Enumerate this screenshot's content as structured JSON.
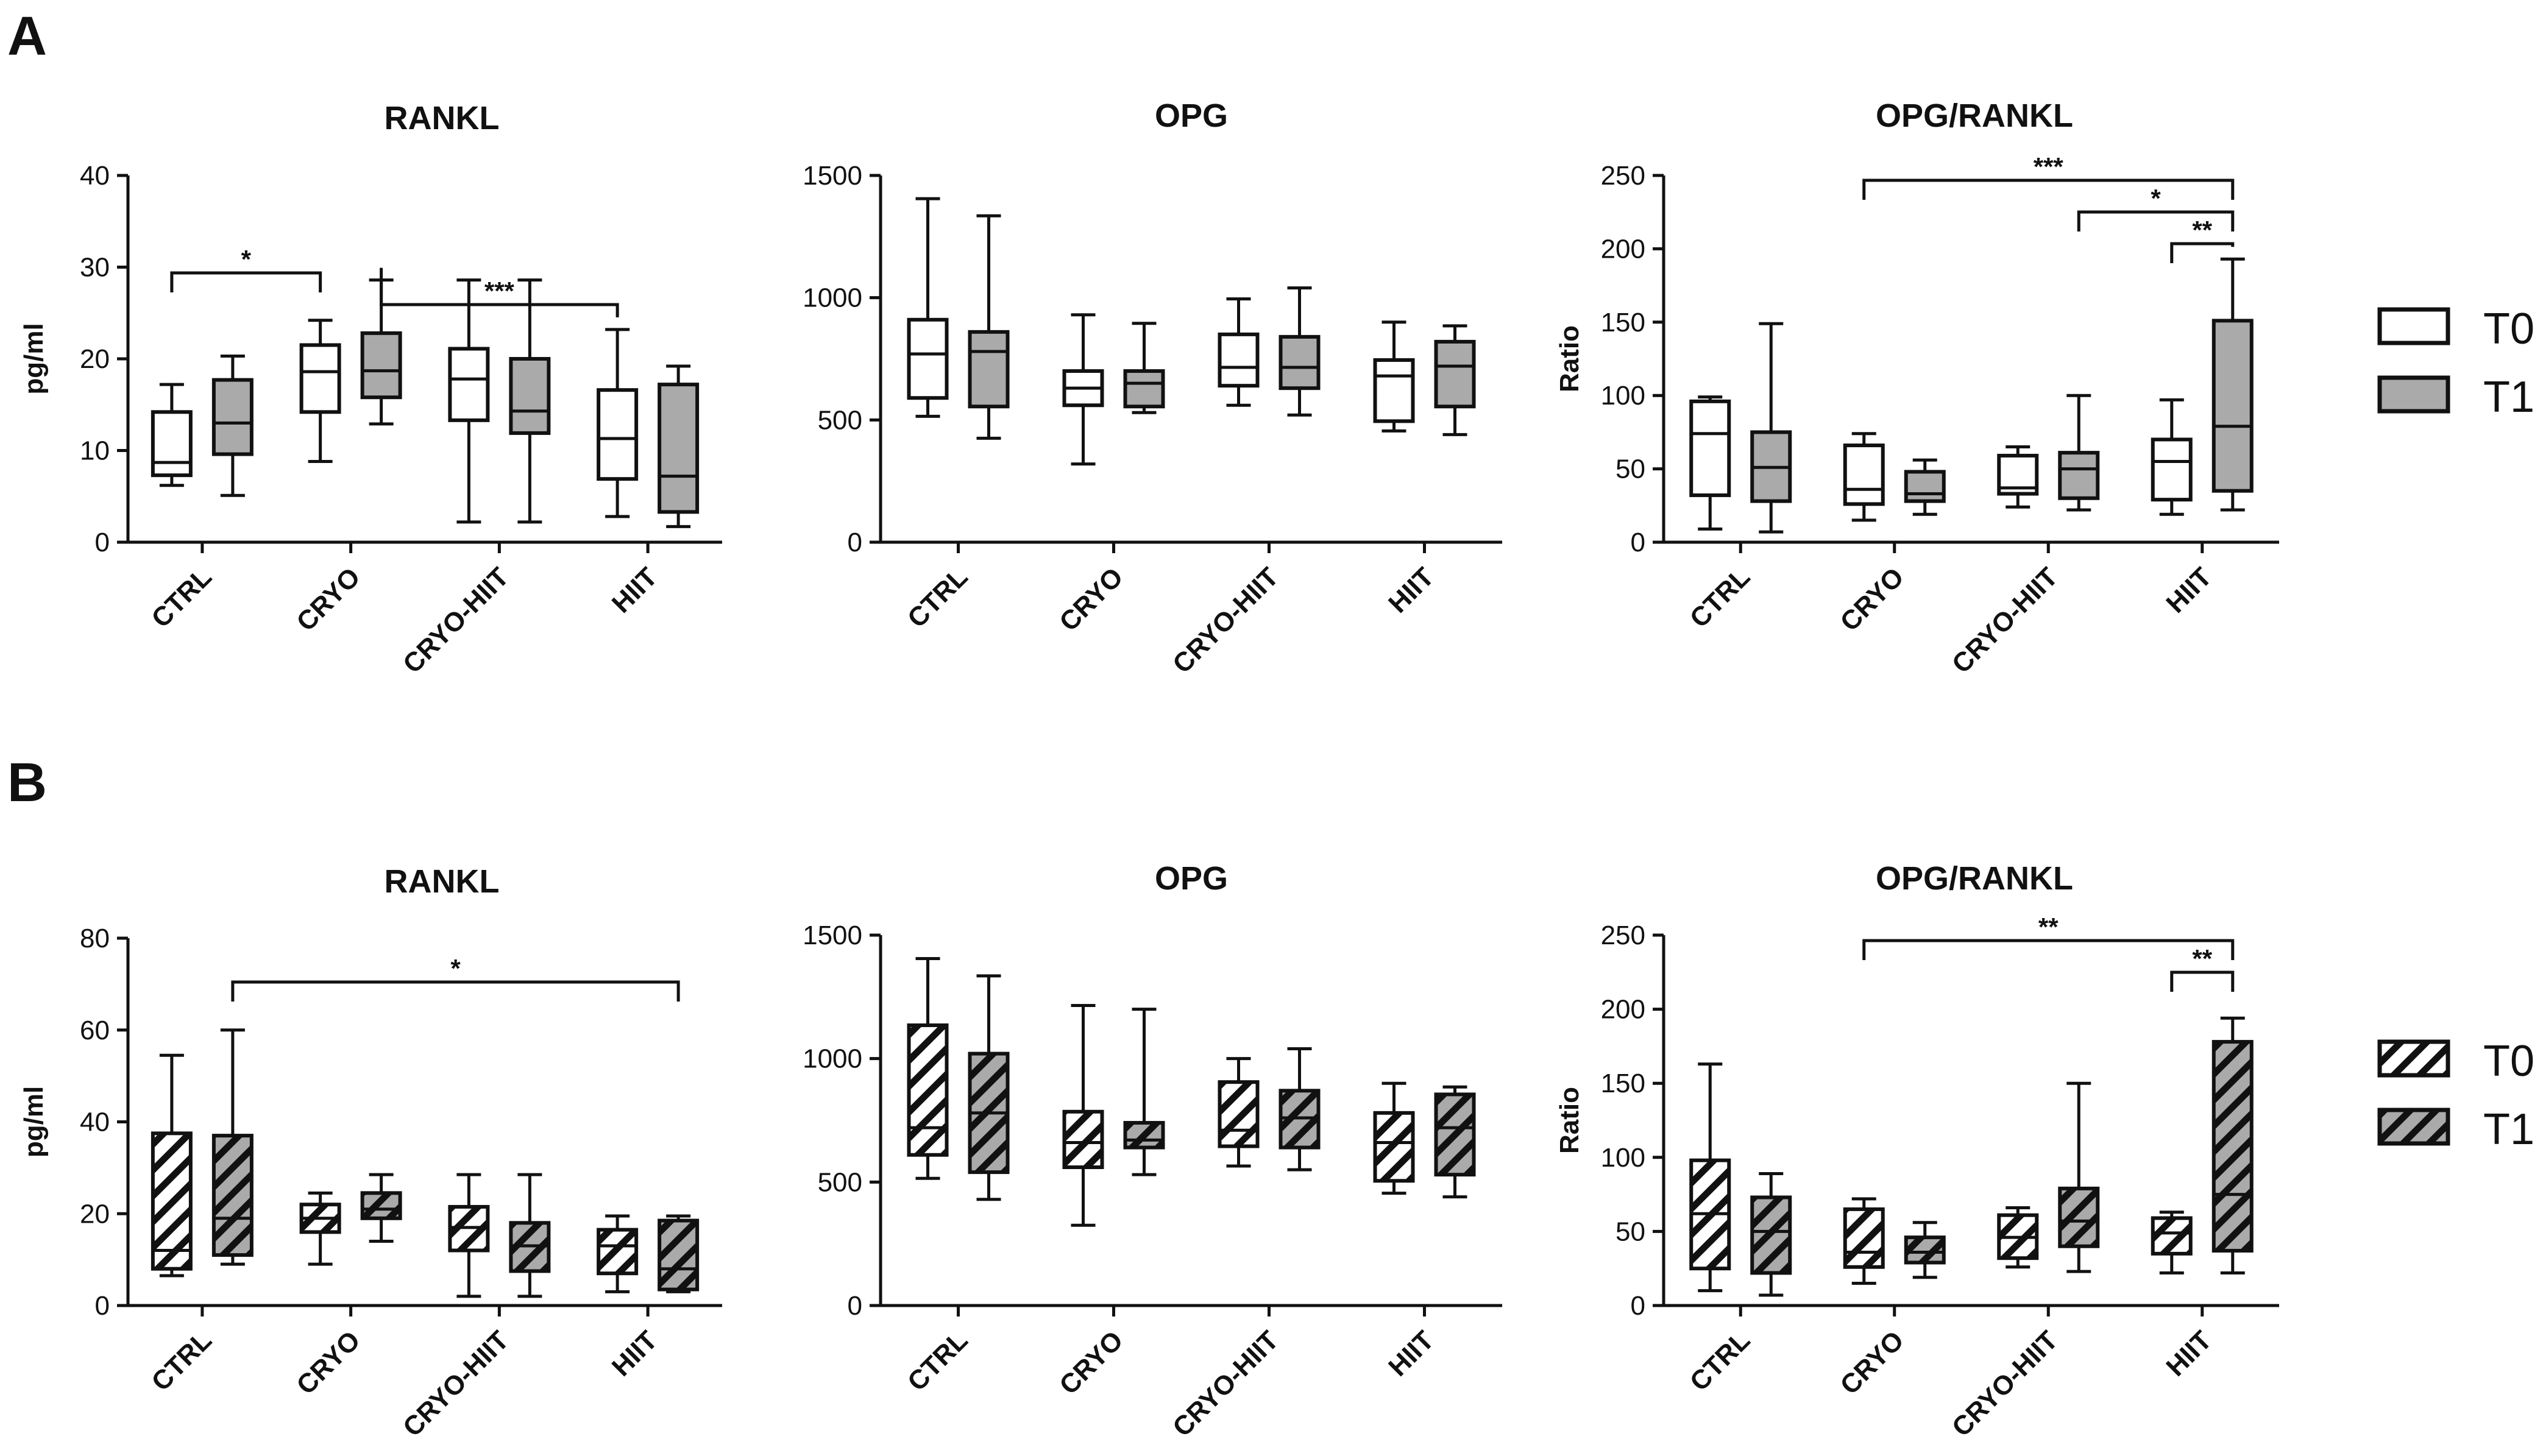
{
  "panels": [
    {
      "letter": "A"
    },
    {
      "letter": "B"
    }
  ],
  "legend_A": {
    "entries": [
      {
        "label": "T0",
        "fill": "#ffffff"
      },
      {
        "label": "T1",
        "fill": "#aaaaaa"
      }
    ],
    "hatched": false
  },
  "legend_B": {
    "entries": [
      {
        "label": "T0",
        "fill": "#ffffff"
      },
      {
        "label": "T1",
        "fill": "#aaaaaa"
      }
    ],
    "hatched": true
  },
  "colors": {
    "t0": "#ffffff",
    "t1": "#aaaaaa",
    "stroke": "#111111"
  },
  "chart_data": [
    {
      "id": "A-rankl",
      "panel": "A",
      "type": "box",
      "title": "RANKL",
      "ylabel": "pg/ml",
      "ylim": [
        0,
        40
      ],
      "yticks": [
        0,
        10,
        20,
        30,
        40
      ],
      "hatched": false,
      "categories": [
        "CTRL",
        "CRYO",
        "CRYO-HIIT",
        "HIIT"
      ],
      "series": [
        {
          "name": "T0",
          "boxes": [
            {
              "min": 6.2,
              "q1": 7.3,
              "median": 8.7,
              "q3": 14.2,
              "max": 17.2
            },
            {
              "min": 8.8,
              "q1": 14.2,
              "median": 18.6,
              "q3": 21.5,
              "max": 24.2
            },
            {
              "min": 2.2,
              "q1": 13.3,
              "median": 17.8,
              "q3": 21.1,
              "max": 28.6
            },
            {
              "min": 2.8,
              "q1": 6.9,
              "median": 11.3,
              "q3": 16.6,
              "max": 23.2
            }
          ]
        },
        {
          "name": "T1",
          "boxes": [
            {
              "min": 5.1,
              "q1": 9.6,
              "median": 13.0,
              "q3": 17.7,
              "max": 20.3
            },
            {
              "min": 12.9,
              "q1": 15.8,
              "median": 18.7,
              "q3": 22.8,
              "max": 28.6
            },
            {
              "min": 2.2,
              "q1": 11.9,
              "median": 14.3,
              "q3": 20.0,
              "max": 28.6
            },
            {
              "min": 1.7,
              "q1": 3.3,
              "median": 7.2,
              "q3": 17.2,
              "max": 19.2
            }
          ]
        }
      ],
      "significance": [
        {
          "from": [
            0,
            0
          ],
          "to": [
            1,
            0
          ],
          "label": "*"
        },
        {
          "from": [
            1,
            1
          ],
          "to": [
            3,
            0
          ],
          "label": "***"
        }
      ]
    },
    {
      "id": "A-opg",
      "panel": "A",
      "type": "box",
      "title": "OPG",
      "ylabel": "",
      "ylim": [
        0,
        1500
      ],
      "yticks": [
        0,
        500,
        1000,
        1500
      ],
      "hatched": false,
      "categories": [
        "CTRL",
        "CRYO",
        "CRYO-HIIT",
        "HIIT"
      ],
      "series": [
        {
          "name": "T0",
          "boxes": [
            {
              "min": 515,
              "q1": 590,
              "median": 770,
              "q3": 910,
              "max": 1405
            },
            {
              "min": 320,
              "q1": 560,
              "median": 630,
              "q3": 700,
              "max": 930
            },
            {
              "min": 560,
              "q1": 640,
              "median": 715,
              "q3": 850,
              "max": 995
            },
            {
              "min": 455,
              "q1": 495,
              "median": 680,
              "q3": 745,
              "max": 900
            }
          ]
        },
        {
          "name": "T1",
          "boxes": [
            {
              "min": 425,
              "q1": 555,
              "median": 780,
              "q3": 860,
              "max": 1335
            },
            {
              "min": 530,
              "q1": 555,
              "median": 650,
              "q3": 700,
              "max": 895
            },
            {
              "min": 520,
              "q1": 630,
              "median": 715,
              "q3": 840,
              "max": 1040
            },
            {
              "min": 440,
              "q1": 555,
              "median": 720,
              "q3": 820,
              "max": 885
            }
          ]
        }
      ],
      "significance": []
    },
    {
      "id": "A-ratio",
      "panel": "A",
      "type": "box",
      "title": "OPG/RANKL",
      "ylabel": "Ratio",
      "ylim": [
        0,
        250
      ],
      "yticks": [
        0,
        50,
        100,
        150,
        200,
        250
      ],
      "hatched": false,
      "categories": [
        "CTRL",
        "CRYO",
        "CRYO-HIIT",
        "HIIT"
      ],
      "series": [
        {
          "name": "T0",
          "boxes": [
            {
              "min": 9,
              "q1": 32,
              "median": 74,
              "q3": 96,
              "max": 99
            },
            {
              "min": 15,
              "q1": 26,
              "median": 36,
              "q3": 66,
              "max": 74
            },
            {
              "min": 24,
              "q1": 33,
              "median": 37,
              "q3": 59,
              "max": 65
            },
            {
              "min": 19,
              "q1": 29,
              "median": 55,
              "q3": 70,
              "max": 97
            }
          ]
        },
        {
          "name": "T1",
          "boxes": [
            {
              "min": 7,
              "q1": 28,
              "median": 51,
              "q3": 75,
              "max": 149
            },
            {
              "min": 19,
              "q1": 28,
              "median": 33,
              "q3": 48,
              "max": 56
            },
            {
              "min": 22,
              "q1": 30,
              "median": 50,
              "q3": 61,
              "max": 100
            },
            {
              "min": 22,
              "q1": 35,
              "median": 79,
              "q3": 151,
              "max": 193
            }
          ]
        }
      ],
      "significance": [
        {
          "from": [
            1,
            0
          ],
          "to": [
            3,
            1
          ],
          "label": "***"
        },
        {
          "from": [
            2,
            1
          ],
          "to": [
            3,
            1
          ],
          "label": "*"
        },
        {
          "from": [
            3,
            0
          ],
          "to": [
            3,
            1
          ],
          "label": "**"
        }
      ]
    },
    {
      "id": "B-rankl",
      "panel": "B",
      "type": "box",
      "title": "RANKL",
      "ylabel": "pg/ml",
      "ylim": [
        0,
        80
      ],
      "yticks": [
        0,
        20,
        40,
        60,
        80
      ],
      "hatched": true,
      "categories": [
        "CTRL",
        "CRYO",
        "CRYO-HIIT",
        "HIIT"
      ],
      "series": [
        {
          "name": "T0",
          "boxes": [
            {
              "min": 6.5,
              "q1": 8,
              "median": 12,
              "q3": 37.5,
              "max": 54.5
            },
            {
              "min": 9,
              "q1": 16,
              "median": 19,
              "q3": 22,
              "max": 24.5
            },
            {
              "min": 2,
              "q1": 12,
              "median": 17,
              "q3": 21.5,
              "max": 28.5
            },
            {
              "min": 3,
              "q1": 7,
              "median": 13,
              "q3": 16.5,
              "max": 19.5
            }
          ]
        },
        {
          "name": "T1",
          "boxes": [
            {
              "min": 9,
              "q1": 11,
              "median": 19,
              "q3": 37,
              "max": 60
            },
            {
              "min": 14,
              "q1": 19,
              "median": 21,
              "q3": 24.5,
              "max": 28.5
            },
            {
              "min": 2,
              "q1": 7.5,
              "median": 13,
              "q3": 18,
              "max": 28.5
            },
            {
              "min": 3,
              "q1": 3.5,
              "median": 8,
              "q3": 18.5,
              "max": 19.5
            }
          ]
        }
      ],
      "significance": [
        {
          "from": [
            0,
            1
          ],
          "to": [
            3,
            1
          ],
          "label": "*"
        }
      ]
    },
    {
      "id": "B-opg",
      "panel": "B",
      "type": "box",
      "title": "OPG",
      "ylabel": "",
      "ylim": [
        0,
        1500
      ],
      "yticks": [
        0,
        500,
        1000,
        1500
      ],
      "hatched": true,
      "categories": [
        "CTRL",
        "CRYO",
        "CRYO-HIIT",
        "HIIT"
      ],
      "series": [
        {
          "name": "T0",
          "boxes": [
            {
              "min": 515,
              "q1": 610,
              "median": 720,
              "q3": 1135,
              "max": 1405
            },
            {
              "min": 325,
              "q1": 560,
              "median": 660,
              "q3": 785,
              "max": 1215
            },
            {
              "min": 565,
              "q1": 645,
              "median": 710,
              "q3": 905,
              "max": 1000
            },
            {
              "min": 455,
              "q1": 505,
              "median": 660,
              "q3": 780,
              "max": 900
            }
          ]
        },
        {
          "name": "T1",
          "boxes": [
            {
              "min": 430,
              "q1": 540,
              "median": 780,
              "q3": 1020,
              "max": 1335
            },
            {
              "min": 530,
              "q1": 640,
              "median": 670,
              "q3": 740,
              "max": 1200
            },
            {
              "min": 550,
              "q1": 640,
              "median": 760,
              "q3": 870,
              "max": 1040
            },
            {
              "min": 440,
              "q1": 530,
              "median": 720,
              "q3": 855,
              "max": 885
            }
          ]
        }
      ],
      "significance": []
    },
    {
      "id": "B-ratio",
      "panel": "B",
      "type": "box",
      "title": "OPG/RANKL",
      "ylabel": "Ratio",
      "ylim": [
        0,
        250
      ],
      "yticks": [
        0,
        50,
        100,
        150,
        200,
        250
      ],
      "hatched": true,
      "categories": [
        "CTRL",
        "CRYO",
        "CRYO-HIIT",
        "HIIT"
      ],
      "series": [
        {
          "name": "T0",
          "boxes": [
            {
              "min": 10,
              "q1": 25,
              "median": 62,
              "q3": 98,
              "max": 163
            },
            {
              "min": 15,
              "q1": 26,
              "median": 36,
              "q3": 65,
              "max": 72
            },
            {
              "min": 26,
              "q1": 32,
              "median": 46,
              "q3": 61,
              "max": 66
            },
            {
              "min": 22,
              "q1": 35,
              "median": 49,
              "q3": 59,
              "max": 63
            }
          ]
        },
        {
          "name": "T1",
          "boxes": [
            {
              "min": 7,
              "q1": 22,
              "median": 50,
              "q3": 73,
              "max": 89
            },
            {
              "min": 19,
              "q1": 29,
              "median": 36,
              "q3": 46,
              "max": 56
            },
            {
              "min": 23,
              "q1": 40,
              "median": 57,
              "q3": 79,
              "max": 150
            },
            {
              "min": 22,
              "q1": 37,
              "median": 75,
              "q3": 178,
              "max": 194
            }
          ]
        }
      ],
      "significance": [
        {
          "from": [
            1,
            0
          ],
          "to": [
            3,
            1
          ],
          "label": "**"
        },
        {
          "from": [
            3,
            0
          ],
          "to": [
            3,
            1
          ],
          "label": "**"
        }
      ]
    }
  ]
}
